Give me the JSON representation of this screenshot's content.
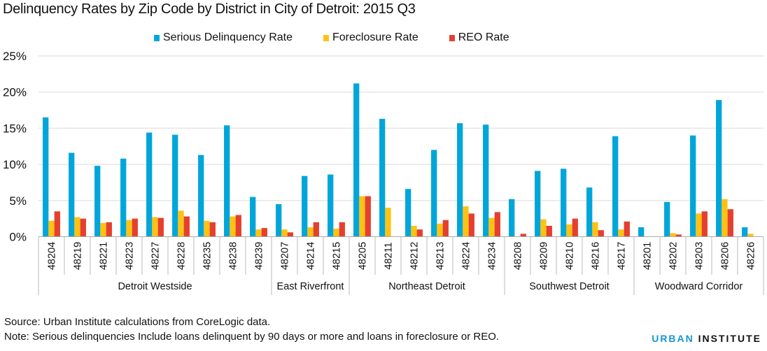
{
  "chart_data": {
    "type": "bar",
    "title": "Delinquency Rates by Zip Code by District in City of Detroit: 2015 Q3",
    "xlabel": "",
    "ylabel": "",
    "ylim": [
      0,
      25
    ],
    "yticks": [
      "0%",
      "5%",
      "10%",
      "15%",
      "20%",
      "25%"
    ],
    "ytick_values": [
      0,
      5,
      10,
      15,
      20,
      25
    ],
    "grid": true,
    "legend_position": "top",
    "categories": [
      "48204",
      "48219",
      "48221",
      "48223",
      "48227",
      "48228",
      "48235",
      "48238",
      "48239",
      "48207",
      "48214",
      "48215",
      "48205",
      "48211",
      "48212",
      "48213",
      "48224",
      "48234",
      "48208",
      "48209",
      "48210",
      "48216",
      "48217",
      "48201",
      "48202",
      "48203",
      "48206",
      "48226"
    ],
    "groups": [
      {
        "name": "Detroit Westside",
        "count": 9
      },
      {
        "name": "East Riverfront",
        "count": 3
      },
      {
        "name": "Northeast Detroit",
        "count": 6
      },
      {
        "name": "Southwest Detroit",
        "count": 5
      },
      {
        "name": "Woodward Corridor",
        "count": 5
      }
    ],
    "series": [
      {
        "name": "Serious Delinquency Rate",
        "color": "#00a6d9",
        "values": [
          16.5,
          11.6,
          9.8,
          10.8,
          14.4,
          14.1,
          11.3,
          15.4,
          5.5,
          4.5,
          8.4,
          8.6,
          21.2,
          16.3,
          6.6,
          12.0,
          15.7,
          15.5,
          5.2,
          9.1,
          9.4,
          6.8,
          13.9,
          1.3,
          4.8,
          14.0,
          18.9,
          1.3
        ]
      },
      {
        "name": "Foreclosure Rate",
        "color": "#fec212",
        "values": [
          2.2,
          2.7,
          1.9,
          2.3,
          2.7,
          3.6,
          2.2,
          2.8,
          1.0,
          1.0,
          1.3,
          1.1,
          5.6,
          4.0,
          1.5,
          1.8,
          4.2,
          2.6,
          0,
          2.4,
          1.7,
          2.0,
          1.0,
          0,
          0.5,
          3.2,
          5.2,
          0.4
        ]
      },
      {
        "name": "REO Rate",
        "color": "#e5402f",
        "values": [
          3.5,
          2.5,
          2.0,
          2.5,
          2.6,
          2.8,
          2.0,
          3.0,
          1.2,
          0.6,
          2.0,
          2.0,
          5.6,
          0,
          1.0,
          2.3,
          3.2,
          3.4,
          0.4,
          1.5,
          2.5,
          0.9,
          2.1,
          0,
          0.3,
          3.5,
          3.8,
          0
        ]
      }
    ]
  },
  "footer": {
    "source": "Source: Urban Institute calculations from CoreLogic data.",
    "note": "Note: Serious delinquencies Include loans delinquent by 90 days or more and loans in foreclosure or REO."
  },
  "logo": {
    "part1": "URBAN",
    "part2": "INSTITUTE",
    "part1_color": "#1696d2"
  }
}
